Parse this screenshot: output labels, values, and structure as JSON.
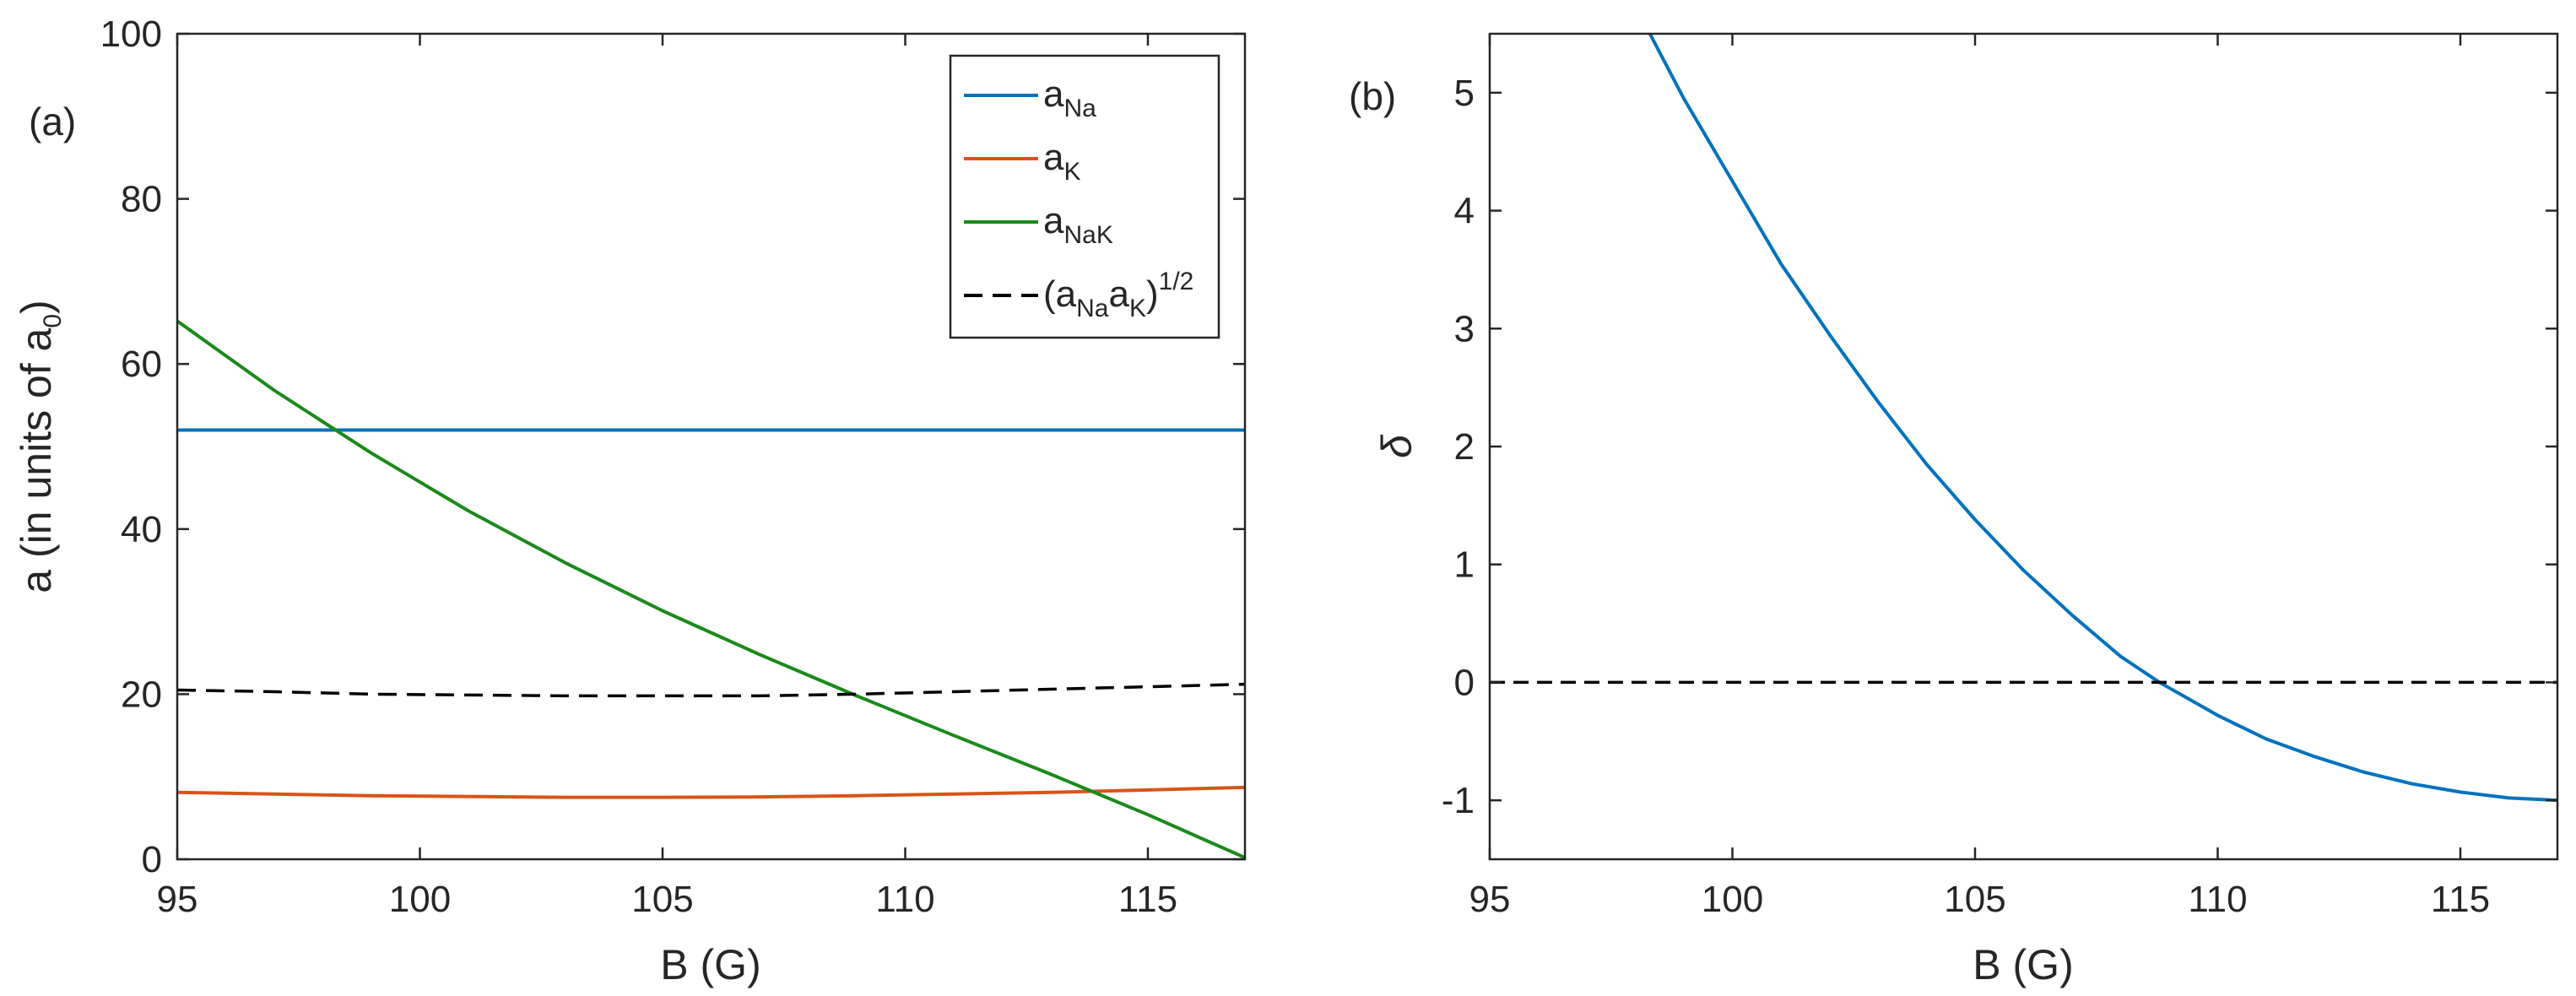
{
  "chart_data": [
    {
      "panel": "(a)",
      "type": "line",
      "xlabel": "B (G)",
      "ylabel": "a (in units of a",
      "ylabel_sub": "0",
      "ylabel_close": ")",
      "xlim": [
        95,
        117
      ],
      "ylim": [
        0,
        100
      ],
      "xticks": [
        95,
        100,
        105,
        110,
        115
      ],
      "xtick_labels": [
        "95",
        "100",
        "105",
        "110",
        "115"
      ],
      "yticks": [
        0,
        20,
        40,
        60,
        80,
        100
      ],
      "ytick_labels": [
        "0",
        "20",
        "40",
        "60",
        "80",
        "100"
      ],
      "legend_position": "top-right",
      "series": [
        {
          "name": "a_Na",
          "legend_main": "a",
          "legend_sub": "Na",
          "color": "#0072BD",
          "dash": "solid",
          "x": [
            95,
            117
          ],
          "y": [
            52,
            52
          ]
        },
        {
          "name": "a_K",
          "legend_main": "a",
          "legend_sub": "K",
          "color": "#D95319",
          "dash": "solid",
          "x": [
            95,
            97,
            99,
            101,
            103,
            105,
            107,
            109,
            111,
            113,
            115,
            117
          ],
          "y": [
            8.1,
            7.9,
            7.7,
            7.6,
            7.5,
            7.5,
            7.55,
            7.7,
            7.9,
            8.1,
            8.4,
            8.7
          ]
        },
        {
          "name": "a_NaK",
          "legend_main": "a",
          "legend_sub": "NaK",
          "color": "#1A8A1A",
          "dash": "solid",
          "x": [
            95,
            97,
            99,
            101,
            103,
            105,
            107,
            109,
            111,
            113,
            115,
            117
          ],
          "y": [
            65.2,
            56.8,
            49.2,
            42.2,
            35.9,
            30.1,
            24.8,
            19.8,
            15.0,
            10.3,
            5.4,
            0.2
          ]
        },
        {
          "name": "(a_Na a_K)^1/2",
          "legend_parts": [
            "(a",
            "Na",
            "a",
            "K",
            ")",
            "1/2"
          ],
          "color": "#000000",
          "dash": "dashed",
          "x": [
            95,
            97,
            99,
            101,
            103,
            105,
            107,
            109,
            111,
            113,
            115,
            117
          ],
          "y": [
            20.5,
            20.3,
            20.0,
            19.9,
            19.8,
            19.8,
            19.8,
            20.0,
            20.3,
            20.6,
            20.9,
            21.2
          ]
        }
      ]
    },
    {
      "panel": "(b)",
      "type": "line",
      "xlabel": "B (G)",
      "ylabel": "δ",
      "xlim": [
        95,
        117
      ],
      "ylim": [
        -1.5,
        5.5
      ],
      "xticks": [
        95,
        100,
        105,
        110,
        115
      ],
      "xtick_labels": [
        "95",
        "100",
        "105",
        "110",
        "115"
      ],
      "yticks": [
        -1,
        0,
        1,
        2,
        3,
        4,
        5
      ],
      "ytick_labels": [
        "-1",
        "0",
        "1",
        "2",
        "3",
        "4",
        "5"
      ],
      "series": [
        {
          "name": "delta",
          "color": "#0072BD",
          "dash": "solid",
          "x": [
            98.3,
            99,
            100,
            101,
            102,
            103,
            104,
            105,
            106,
            107,
            108,
            108.8,
            110,
            111,
            112,
            113,
            114,
            115,
            116,
            117
          ],
          "y": [
            5.5,
            4.95,
            4.25,
            3.55,
            2.95,
            2.38,
            1.85,
            1.38,
            0.95,
            0.57,
            0.22,
            0.0,
            -0.28,
            -0.48,
            -0.63,
            -0.76,
            -0.86,
            -0.93,
            -0.98,
            -1.0
          ]
        },
        {
          "name": "zero-line",
          "color": "#000000",
          "dash": "dashed",
          "x": [
            95,
            117
          ],
          "y": [
            0,
            0
          ]
        }
      ]
    }
  ]
}
